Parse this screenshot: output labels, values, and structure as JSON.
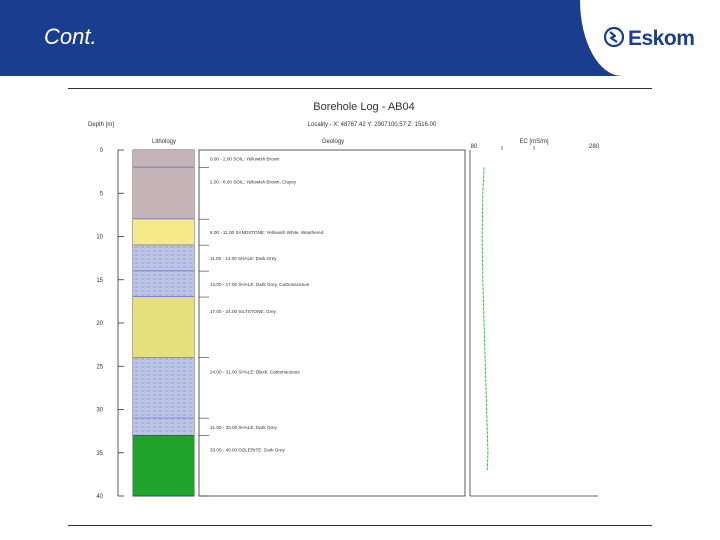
{
  "slide": {
    "title": "Cont.",
    "brand": {
      "name": "Eskom",
      "color": "#1b3d8f"
    }
  },
  "log": {
    "title": "Borehole Log - AB04",
    "depth_header": "Depth [m]",
    "lithology_header": "Lithology",
    "geology_header": "Geology",
    "ec_header": "EC [mS/m]",
    "locality": "Locality - X: 48767.42   Y: 2907100.57   Z: 1516.00",
    "depth_ticks": [
      0,
      5,
      10,
      15,
      20,
      25,
      30,
      35,
      40
    ],
    "ec_range": [
      80,
      280
    ],
    "layers": [
      {
        "from": 0.0,
        "to": 2.0,
        "desc": "0.00 - 2.00 SOIL: Yellowish Brown",
        "color": "#c4b4b7",
        "pattern": "plain"
      },
      {
        "from": 2.0,
        "to": 8.0,
        "desc": "2.00 - 8.00 SOIL: Yellowish Brown, Clayey",
        "color": "#c4b4b7",
        "pattern": "plain"
      },
      {
        "from": 8.0,
        "to": 11.0,
        "desc": "8.00 - 11.00 SANDSTONE: Yellowish White, Weathered",
        "color": "#f6e98a",
        "pattern": "plain"
      },
      {
        "from": 11.0,
        "to": 14.0,
        "desc": "11.00 - 14.00 SHALE: Dark Grey",
        "color": "#a9b3df",
        "pattern": "shale"
      },
      {
        "from": 14.0,
        "to": 17.0,
        "desc": "14.00 - 17.00 SHALE: Dark Grey, Carbonaceous",
        "color": "#a9b3df",
        "pattern": "shale"
      },
      {
        "from": 17.0,
        "to": 24.0,
        "desc": "17.00 - 24.00 SILTSTONE: Grey",
        "color": "#e6e07c",
        "pattern": "plain"
      },
      {
        "from": 24.0,
        "to": 31.0,
        "desc": "24.00 - 31.00 SHALE: Black, Carbonaceous",
        "color": "#a9b3df",
        "pattern": "shale"
      },
      {
        "from": 31.0,
        "to": 33.0,
        "desc": "31.00 - 33.00 SHALE: Dark Grey",
        "color": "#a9b3df",
        "pattern": "shale"
      },
      {
        "from": 33.0,
        "to": 40.0,
        "desc": "33.00 - 40.00 DOLERITE: Dark Grey",
        "color": "#1fa32b",
        "pattern": "plain"
      }
    ],
    "ec_profile": {
      "color": "#34c23a",
      "points": [
        [
          2,
          102
        ],
        [
          5,
          100
        ],
        [
          10,
          99
        ],
        [
          15,
          100
        ],
        [
          20,
          102
        ],
        [
          25,
          104
        ],
        [
          30,
          106
        ],
        [
          35,
          108
        ],
        [
          37,
          107
        ]
      ]
    }
  }
}
